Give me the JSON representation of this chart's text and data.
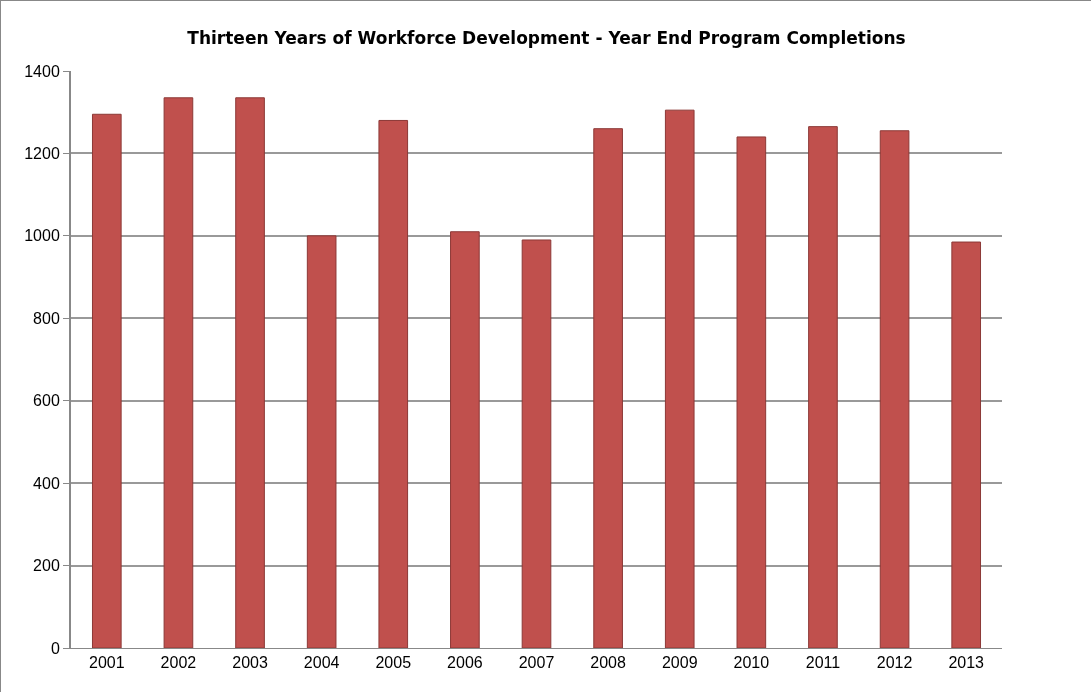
{
  "chart_data": {
    "type": "bar",
    "title": "Thirteen Years of Workforce Development - Year End Program Completions",
    "categories": [
      "2001",
      "2002",
      "2003",
      "2004",
      "2005",
      "2006",
      "2007",
      "2008",
      "2009",
      "2010",
      "2011",
      "2012",
      "2013"
    ],
    "values": [
      1295,
      1335,
      1335,
      1000,
      1280,
      1010,
      990,
      1260,
      1305,
      1240,
      1265,
      1255,
      985
    ],
    "color": "#c0504d",
    "ylim": [
      0,
      1400
    ],
    "yticks": [
      0,
      200,
      400,
      600,
      800,
      1000,
      1200,
      1400
    ],
    "grid": "y",
    "legend": false
  }
}
